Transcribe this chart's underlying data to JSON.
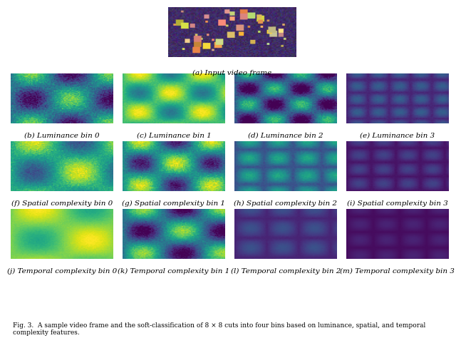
{
  "title_image_caption": "(a) Input video frame",
  "row1_captions": [
    "(b) Luminance bin 0",
    "(c) Luminance bin 1",
    "(d) Luminance bin 2",
    "(e) Luminance bin 3"
  ],
  "row2_captions": [
    "(f) Spatial complexity bin 0",
    "(g) Spatial complexity bin 1",
    "(h) Spatial complexity bin 2",
    "(i) Spatial complexity bin 3"
  ],
  "row3_captions": [
    "(j) Temporal complexity bin 0",
    "(k) Temporal complexity bin 1",
    "(l) Temporal complexity bin 2",
    "(m) Temporal complexity bin 3"
  ],
  "fig_caption": "Fig. 3.  A sample video frame and the soft-classification of 8 × 8 cuts into four bins based on luminance, spatial, and temporal complexity features.",
  "background_color": "#ffffff",
  "caption_fontsize": 7.5,
  "fig_caption_fontsize": 6.5
}
